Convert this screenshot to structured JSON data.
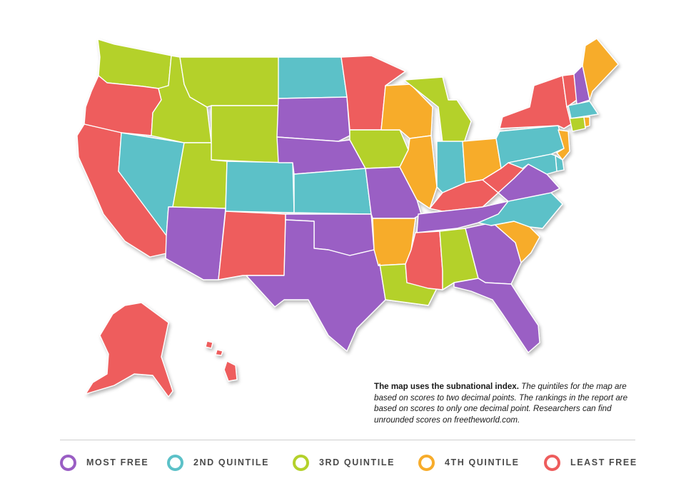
{
  "colors": {
    "most_free": "#9a5ec4",
    "second": "#5cc1c8",
    "third": "#b4d12b",
    "fourth": "#f7ac2b",
    "least_free": "#ee5d5d"
  },
  "map": {
    "regions": [
      {
        "id": "wa",
        "class": "third"
      },
      {
        "id": "or",
        "class": "least_free"
      },
      {
        "id": "ca",
        "class": "least_free"
      },
      {
        "id": "nv",
        "class": "second"
      },
      {
        "id": "id",
        "class": "third"
      },
      {
        "id": "mt",
        "class": "third"
      },
      {
        "id": "wy",
        "class": "third"
      },
      {
        "id": "ut",
        "class": "third"
      },
      {
        "id": "co",
        "class": "second"
      },
      {
        "id": "az",
        "class": "most_free"
      },
      {
        "id": "nm",
        "class": "least_free"
      },
      {
        "id": "nd",
        "class": "second"
      },
      {
        "id": "sd",
        "class": "most_free"
      },
      {
        "id": "ne",
        "class": "most_free"
      },
      {
        "id": "ks",
        "class": "second"
      },
      {
        "id": "ok",
        "class": "most_free"
      },
      {
        "id": "tx",
        "class": "most_free"
      },
      {
        "id": "mn",
        "class": "least_free"
      },
      {
        "id": "ia",
        "class": "third"
      },
      {
        "id": "mo",
        "class": "most_free"
      },
      {
        "id": "ar",
        "class": "fourth"
      },
      {
        "id": "la",
        "class": "third"
      },
      {
        "id": "wi",
        "class": "fourth"
      },
      {
        "id": "il",
        "class": "fourth"
      },
      {
        "id": "mi",
        "class": "third"
      },
      {
        "id": "in",
        "class": "second"
      },
      {
        "id": "oh",
        "class": "fourth"
      },
      {
        "id": "ky",
        "class": "least_free"
      },
      {
        "id": "tn",
        "class": "most_free"
      },
      {
        "id": "ms",
        "class": "least_free"
      },
      {
        "id": "al",
        "class": "third"
      },
      {
        "id": "ga",
        "class": "most_free"
      },
      {
        "id": "fl",
        "class": "most_free"
      },
      {
        "id": "sc",
        "class": "fourth"
      },
      {
        "id": "nc",
        "class": "second"
      },
      {
        "id": "va",
        "class": "most_free"
      },
      {
        "id": "wv",
        "class": "least_free"
      },
      {
        "id": "pa",
        "class": "second"
      },
      {
        "id": "ny",
        "class": "least_free"
      },
      {
        "id": "vt",
        "class": "least_free"
      },
      {
        "id": "nh",
        "class": "most_free"
      },
      {
        "id": "me",
        "class": "fourth"
      },
      {
        "id": "ma",
        "class": "second"
      },
      {
        "id": "ct",
        "class": "third"
      },
      {
        "id": "ri",
        "class": "fourth"
      },
      {
        "id": "nj",
        "class": "fourth"
      },
      {
        "id": "de",
        "class": "second"
      },
      {
        "id": "md",
        "class": "second"
      },
      {
        "id": "ak",
        "class": "least_free"
      },
      {
        "id": "hi",
        "class": "least_free"
      }
    ]
  },
  "note": {
    "bold": "The map uses the subnational index.",
    "italic": "The quintiles for the map are based on scores to two decimal points. The rankings in the report are based on scores to only one decimal point. Researchers can find unrounded scores on freetheworld.com."
  },
  "legend": [
    {
      "label": "MOST FREE",
      "color": "#9a5ec4"
    },
    {
      "label": "2ND QUINTILE",
      "color": "#5cc1c8"
    },
    {
      "label": "3RD QUINTILE",
      "color": "#b4d12b"
    },
    {
      "label": "4TH QUINTILE",
      "color": "#f7ac2b"
    },
    {
      "label": "LEAST FREE",
      "color": "#ee5d5d"
    }
  ]
}
